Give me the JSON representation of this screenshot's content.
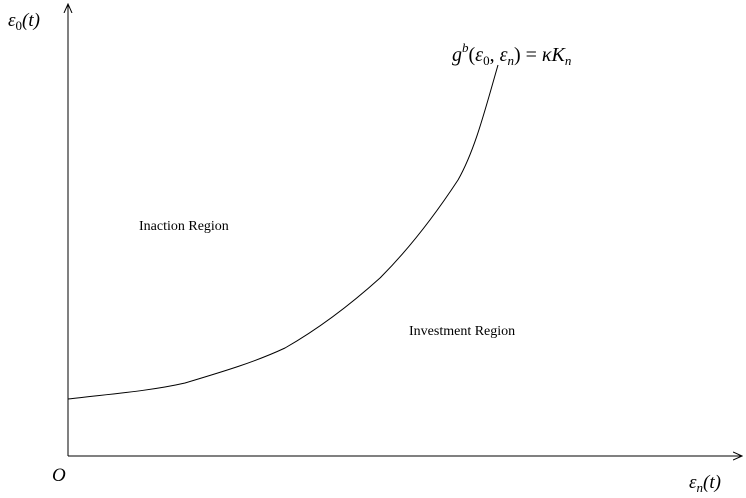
{
  "diagram": {
    "y_axis_label": {
      "var": "ε",
      "sub": "0",
      "arg": "(t)"
    },
    "x_axis_label": {
      "var": "ε",
      "sub": "n",
      "arg": "(t)"
    },
    "origin_label": "O",
    "curve_label": {
      "fn": "g",
      "sup": "b",
      "open": "(",
      "arg1": "ε",
      "arg1_sub": "0",
      "comma": ", ",
      "arg2": "ε",
      "arg2_sub": "n",
      "close": ")",
      "equals": " = ",
      "rhs_kappa": "κ",
      "rhs_k": "K",
      "rhs_sub": "n"
    },
    "regions": {
      "inaction": "Inaction Region",
      "investment": "Investment Region"
    },
    "line_color": "#000000",
    "background_color": "#ffffff"
  }
}
